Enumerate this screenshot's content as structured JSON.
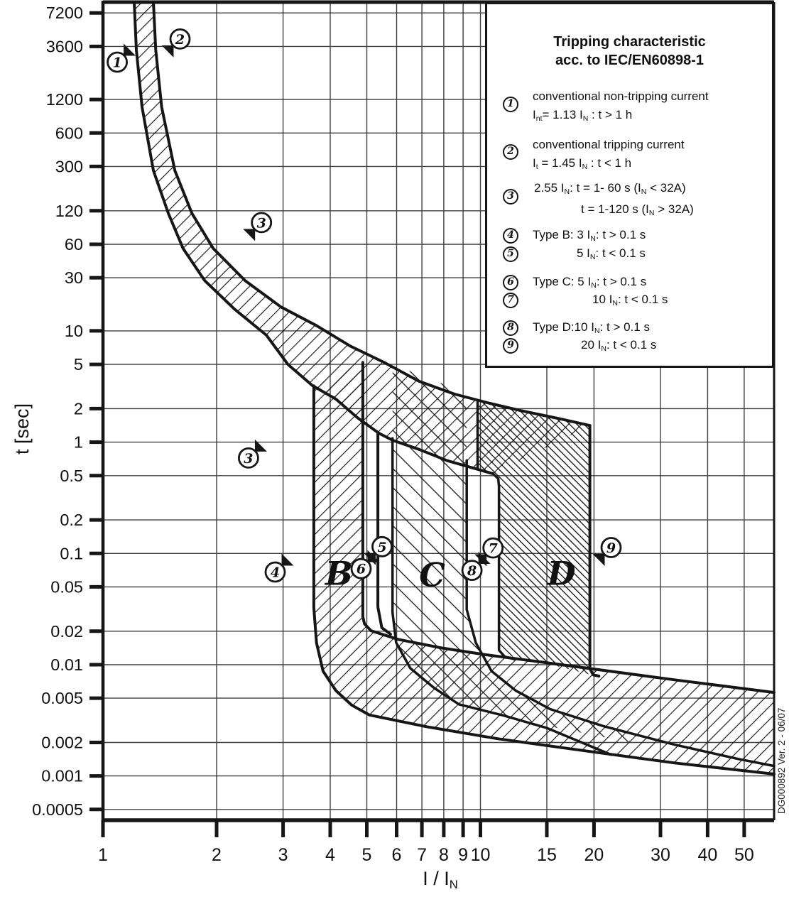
{
  "watermark": "DG000892 Ver. 2 - 06/07",
  "colors": {
    "ink": "#161616",
    "grid": "#3f3f3f",
    "background": "#ffffff"
  },
  "legend": {
    "title_line1": "Tripping characteristic",
    "title_line2": "acc. to IEC/EN60898-1",
    "items": [
      {
        "num": "1",
        "line1": "conventional non-tripping current",
        "line2": "I~nt~= 1.13 I~N~ : t > 1 h"
      },
      {
        "num": "2",
        "line1": "conventional tripping current",
        "line2": "I~t~ = 1.45 I~N~ : t < 1 h"
      },
      {
        "num": "3",
        "line1": "2.55 I~N~: t = 1- 60 s (I~N~ < 32A)",
        "line2": "t = 1-120 s (I~N~ > 32A)"
      },
      {
        "num": "4",
        "line1": "Type B: 3 I~N~: t > 0.1 s"
      },
      {
        "num": "5",
        "line1": "5 I~N~: t < 0.1 s"
      },
      {
        "num": "6",
        "line1": "Type C: 5 I~N~: t > 0.1 s"
      },
      {
        "num": "7",
        "line1": "10 I~N~: t < 0.1 s"
      },
      {
        "num": "8",
        "line1": "Type D:10 I~N~: t > 0.1 s"
      },
      {
        "num": "9",
        "line1": "20 I~N~: t < 0.1 s"
      }
    ]
  },
  "chart_data": {
    "type": "area",
    "title": "Tripping characteristic acc. to IEC/EN60898-1",
    "x_axis": {
      "label": "I / I~N~",
      "scale": "log",
      "min": 1,
      "max": 60,
      "ticks": [
        "1",
        "2",
        "3",
        "4",
        "5",
        "6",
        "7",
        "8",
        "9",
        "10",
        "15",
        "20",
        "30",
        "40",
        "50"
      ]
    },
    "y_axis": {
      "label": "t [sec]",
      "scale": "log",
      "min": 0.0004,
      "max": 9000,
      "ticks": [
        "7200",
        "3600",
        "1200",
        "600",
        "300",
        "120",
        "60",
        "30",
        "10",
        "5",
        "2",
        "1",
        "0.5",
        "0.2",
        "0.1",
        "0.05",
        "0.02",
        "0.01",
        "0.005",
        "0.002",
        "0.001",
        "0.0005"
      ]
    },
    "grid": "on",
    "bands": [
      {
        "name": "thermal-overload-band",
        "hatch": "fwd",
        "points": [
          [
            1.36,
            9000
          ],
          [
            1.38,
            3350
          ],
          [
            1.43,
            1030
          ],
          [
            1.55,
            276
          ],
          [
            1.72,
            114
          ],
          [
            1.96,
            55
          ],
          [
            2.38,
            28.3
          ],
          [
            2.96,
            16.4
          ],
          [
            3.67,
            11.2
          ],
          [
            4.52,
            7.3
          ],
          [
            5.54,
            5.24
          ],
          [
            6.88,
            3.52
          ],
          [
            8.55,
            2.7
          ],
          [
            9.83,
            2.36
          ],
          [
            10.6,
            2.23
          ],
          [
            12.8,
            1.92
          ],
          [
            16.4,
            1.61
          ],
          [
            19.5,
            1.41
          ],
          [
            10.8,
            0.52
          ],
          [
            9.83,
            0.57
          ],
          [
            8.18,
            0.68
          ],
          [
            6.88,
            0.86
          ],
          [
            5.85,
            1.04
          ],
          [
            5.39,
            1.2
          ],
          [
            4.72,
            1.66
          ],
          [
            4.14,
            2.44
          ],
          [
            3.59,
            3.22
          ],
          [
            3.09,
            5.0
          ],
          [
            2.71,
            9.14
          ],
          [
            2.23,
            15.7
          ],
          [
            1.86,
            28.3
          ],
          [
            1.63,
            55
          ],
          [
            1.49,
            114
          ],
          [
            1.36,
            276
          ],
          [
            1.269,
            1030
          ],
          [
            1.226,
            3350
          ],
          [
            1.21,
            9000
          ]
        ]
      },
      {
        "name": "type-b-and-clearing-band",
        "hatch": "fwd",
        "points": [
          [
            3.62,
            3.2
          ],
          [
            3.62,
            0.0325
          ],
          [
            3.68,
            0.0157
          ],
          [
            3.83,
            0.00875
          ],
          [
            4.14,
            0.00585
          ],
          [
            4.56,
            0.00433
          ],
          [
            5.08,
            0.00353
          ],
          [
            7.2,
            0.00277
          ],
          [
            11.1,
            0.00216
          ],
          [
            19.5,
            0.00166
          ],
          [
            32.7,
            0.00131
          ],
          [
            60,
            0.00104
          ],
          [
            60,
            0.00563
          ],
          [
            32.7,
            0.00731
          ],
          [
            19.5,
            0.00923
          ],
          [
            14.4,
            0.0106
          ],
          [
            10.3,
            0.0123
          ],
          [
            7.83,
            0.0142
          ],
          [
            6.05,
            0.0169
          ],
          [
            5.13,
            0.0202
          ],
          [
            4.93,
            0.0233
          ],
          [
            4.88,
            0.027
          ],
          [
            4.88,
            5.2
          ]
        ]
      },
      {
        "name": "type-c-band",
        "hatch": "back",
        "points": [
          [
            5.85,
            5.0
          ],
          [
            9.2,
            2.76
          ],
          [
            9.2,
            0.0313
          ],
          [
            9.73,
            0.0157
          ],
          [
            10.7,
            0.00875
          ],
          [
            12.4,
            0.00585
          ],
          [
            15.3,
            0.00399
          ],
          [
            21.2,
            0.0028
          ],
          [
            26,
            0.00232
          ],
          [
            26,
            0.00193
          ],
          [
            21,
            0.00225
          ],
          [
            16,
            0.0027
          ],
          [
            11.5,
            0.0035
          ],
          [
            8.77,
            0.0044
          ],
          [
            7.53,
            0.0062
          ],
          [
            6.52,
            0.0093
          ],
          [
            5.98,
            0.0158
          ],
          [
            5.85,
            0.0295
          ]
        ]
      },
      {
        "name": "type-d-band",
        "hatch": "dense",
        "points": [
          [
            9.83,
            2.36
          ],
          [
            10.6,
            2.23
          ],
          [
            12.8,
            1.92
          ],
          [
            16.4,
            1.61
          ],
          [
            19.5,
            1.41
          ],
          [
            19.5,
            0.0089
          ],
          [
            19.9,
            0.00802
          ],
          [
            14.4,
            0.0106
          ],
          [
            11.2,
            0.0125
          ],
          [
            11.2,
            0.45
          ],
          [
            10.8,
            0.52
          ],
          [
            9.83,
            0.57
          ]
        ]
      }
    ],
    "curves": [
      {
        "name": "thermal-upper-tripping-curve",
        "width": 4,
        "points": [
          [
            1.36,
            9000
          ],
          [
            1.38,
            3350
          ],
          [
            1.43,
            1030
          ],
          [
            1.55,
            276
          ],
          [
            1.72,
            114
          ],
          [
            1.96,
            55
          ],
          [
            2.38,
            28.3
          ],
          [
            2.96,
            16.4
          ],
          [
            3.67,
            11.2
          ],
          [
            4.52,
            7.3
          ],
          [
            5.54,
            5.24
          ],
          [
            6.88,
            3.52
          ],
          [
            8.55,
            2.7
          ],
          [
            10.6,
            2.23
          ],
          [
            12.8,
            1.92
          ],
          [
            16.4,
            1.61
          ],
          [
            19.5,
            1.41
          ]
        ]
      },
      {
        "name": "thermal-lower-non-tripping-curve",
        "width": 4,
        "points": [
          [
            1.21,
            9000
          ],
          [
            1.226,
            3350
          ],
          [
            1.269,
            1030
          ],
          [
            1.36,
            276
          ],
          [
            1.49,
            114
          ],
          [
            1.63,
            55
          ],
          [
            1.86,
            28.3
          ],
          [
            2.23,
            15.7
          ],
          [
            2.71,
            9.14
          ],
          [
            3.09,
            5.0
          ],
          [
            3.59,
            3.22
          ],
          [
            4.14,
            2.44
          ],
          [
            4.72,
            1.66
          ],
          [
            5.39,
            1.2
          ],
          [
            5.85,
            1.04
          ],
          [
            6.88,
            0.86
          ],
          [
            8.18,
            0.68
          ],
          [
            9.83,
            0.57
          ],
          [
            10.8,
            0.52
          ]
        ]
      },
      {
        "name": "b-left-edge-and-clearing-bottom",
        "width": 4,
        "points": [
          [
            3.62,
            3.2
          ],
          [
            3.62,
            0.0325
          ],
          [
            3.68,
            0.0157
          ],
          [
            3.83,
            0.00875
          ],
          [
            4.14,
            0.00585
          ],
          [
            4.56,
            0.00433
          ],
          [
            5.08,
            0.00353
          ],
          [
            7.2,
            0.00277
          ],
          [
            11.1,
            0.00216
          ],
          [
            19.5,
            0.00166
          ],
          [
            32.7,
            0.00131
          ],
          [
            60,
            0.00104
          ]
        ]
      },
      {
        "name": "b-right-edge-and-clearing-top",
        "width": 4,
        "points": [
          [
            4.88,
            5.2
          ],
          [
            4.88,
            0.027
          ],
          [
            4.93,
            0.0233
          ],
          [
            5.13,
            0.0202
          ],
          [
            6.05,
            0.0169
          ],
          [
            7.83,
            0.0142
          ],
          [
            10.3,
            0.0123
          ],
          [
            14.4,
            0.0106
          ],
          [
            19.5,
            0.00923
          ],
          [
            32.7,
            0.00731
          ],
          [
            60,
            0.00563
          ]
        ]
      },
      {
        "name": "five-in-boundary-line",
        "width": 4,
        "points": [
          [
            5.35,
            1.2
          ],
          [
            5.35,
            0.033
          ],
          [
            5.48,
            0.0215
          ],
          [
            5.78,
            0.0188
          ]
        ]
      },
      {
        "name": "c-left-edge",
        "width": 3.5,
        "points": [
          [
            5.85,
            1.08
          ],
          [
            5.85,
            0.0295
          ],
          [
            5.98,
            0.0158
          ],
          [
            6.52,
            0.0093
          ],
          [
            7.53,
            0.0062
          ],
          [
            8.77,
            0.0044
          ],
          [
            11.5,
            0.0035
          ],
          [
            15,
            0.0027
          ],
          [
            22.2,
            0.00155
          ]
        ]
      },
      {
        "name": "c-right-edge",
        "width": 3.5,
        "points": [
          [
            9.2,
            0.684
          ],
          [
            9.2,
            0.0313
          ],
          [
            9.73,
            0.0157
          ],
          [
            10.7,
            0.00875
          ],
          [
            12.4,
            0.00585
          ],
          [
            15.3,
            0.00399
          ],
          [
            21.2,
            0.0028
          ],
          [
            32.7,
            0.00191
          ],
          [
            48.3,
            0.00142
          ],
          [
            60,
            0.00123
          ]
        ]
      },
      {
        "name": "d-left-edge",
        "width": 3.5,
        "points": [
          [
            9.83,
            2.36
          ],
          [
            9.83,
            0.57
          ]
        ]
      },
      {
        "name": "d-inner-ten-in-step",
        "width": 3.5,
        "points": [
          [
            10.8,
            0.52
          ],
          [
            11.15,
            0.47
          ],
          [
            11.2,
            0.4
          ],
          [
            11.2,
            0.0135
          ],
          [
            11.6,
            0.0118
          ],
          [
            12.3,
            0.0112
          ]
        ]
      },
      {
        "name": "d-right-edge-twenty-in",
        "width": 4,
        "points": [
          [
            19.5,
            1.41
          ],
          [
            19.5,
            0.0092
          ],
          [
            19.9,
            0.0081
          ],
          [
            20.6,
            0.0079
          ]
        ]
      }
    ],
    "markers": [
      {
        "num": "1",
        "i": 1.091,
        "t": 2600,
        "dir": "ne"
      },
      {
        "num": "2",
        "i": 1.6,
        "t": 4200,
        "dir": "sw"
      },
      {
        "num": "3",
        "i": 2.63,
        "t": 94,
        "dir": "sw"
      },
      {
        "num": "3",
        "i": 2.43,
        "t": 0.72,
        "dir": "ne"
      },
      {
        "num": "4",
        "i": 2.86,
        "t": 0.068,
        "dir": "ne"
      },
      {
        "num": "5",
        "i": 5.49,
        "t": 0.115,
        "dir": "sw"
      },
      {
        "num": "6",
        "i": 4.83,
        "t": 0.073,
        "dir": "ne"
      },
      {
        "num": "7",
        "i": 10.8,
        "t": 0.112,
        "dir": "sw"
      },
      {
        "num": "8",
        "i": 9.5,
        "t": 0.0705,
        "dir": "ne"
      },
      {
        "num": "9",
        "i": 22.2,
        "t": 0.113,
        "dir": "sw"
      }
    ],
    "region_labels": [
      {
        "text": "B",
        "i": 4.22,
        "t": 0.0662
      },
      {
        "text": "C",
        "i": 7.45,
        "t": 0.0643
      },
      {
        "text": "D",
        "i": 16.4,
        "t": 0.0662
      }
    ]
  }
}
